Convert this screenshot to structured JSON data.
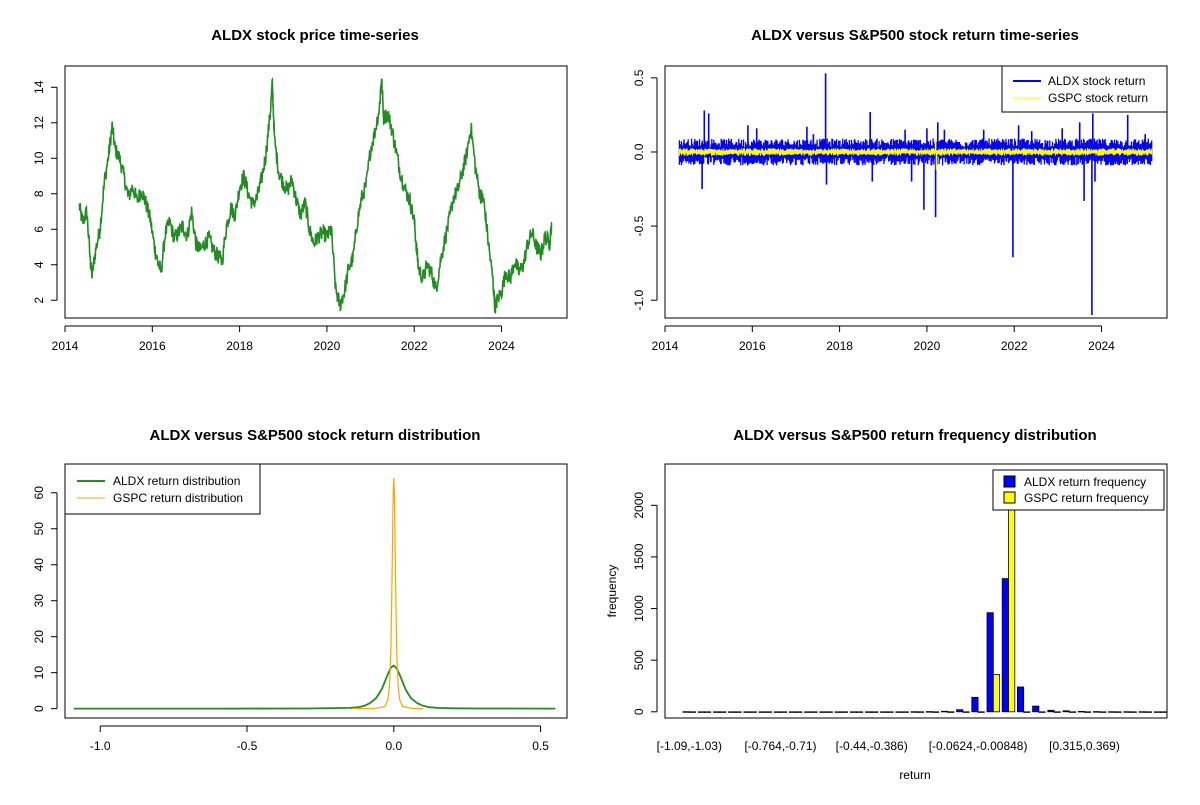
{
  "chart_data": [
    {
      "type": "line",
      "title": "ALDX stock price time-series",
      "xlabel": "",
      "ylabel": "",
      "xlim": [
        2014.0,
        2025.5
      ],
      "ylim": [
        1.0,
        15.2
      ],
      "xticks": [
        2014,
        2016,
        2018,
        2020,
        2022,
        2024
      ],
      "xtick_labels": [
        "2014",
        "2016",
        "2018",
        "2020",
        "2022",
        "2024"
      ],
      "yticks": [
        2,
        4,
        6,
        8,
        10,
        12,
        14
      ],
      "ytick_labels": [
        "2",
        "4",
        "6",
        "8",
        "10",
        "12",
        "14"
      ],
      "series": [
        {
          "name": "ALDX price",
          "color": "#228B22",
          "x": [
            2014.33,
            2014.4,
            2014.5,
            2014.58,
            2014.62,
            2014.7,
            2014.8,
            2014.9,
            2015.0,
            2015.08,
            2015.15,
            2015.25,
            2015.35,
            2015.45,
            2015.55,
            2015.65,
            2015.75,
            2015.85,
            2015.95,
            2016.05,
            2016.12,
            2016.2,
            2016.3,
            2016.4,
            2016.5,
            2016.6,
            2016.7,
            2016.8,
            2016.9,
            2017.0,
            2017.1,
            2017.2,
            2017.3,
            2017.4,
            2017.5,
            2017.6,
            2017.7,
            2017.8,
            2017.9,
            2018.0,
            2018.1,
            2018.2,
            2018.3,
            2018.4,
            2018.5,
            2018.6,
            2018.7,
            2018.75,
            2018.8,
            2018.9,
            2019.0,
            2019.1,
            2019.2,
            2019.3,
            2019.4,
            2019.5,
            2019.6,
            2019.7,
            2019.8,
            2019.9,
            2020.0,
            2020.1,
            2020.2,
            2020.3,
            2020.4,
            2020.5,
            2020.6,
            2020.7,
            2020.8,
            2020.9,
            2021.0,
            2021.1,
            2021.2,
            2021.25,
            2021.3,
            2021.4,
            2021.5,
            2021.6,
            2021.7,
            2021.8,
            2021.9,
            2022.0,
            2022.05,
            2022.1,
            2022.2,
            2022.3,
            2022.4,
            2022.5,
            2022.6,
            2022.7,
            2022.8,
            2022.9,
            2023.0,
            2023.1,
            2023.2,
            2023.3,
            2023.4,
            2023.5,
            2023.55,
            2023.6,
            2023.7,
            2023.8,
            2023.85,
            2023.9,
            2024.0,
            2024.1,
            2024.2,
            2024.3,
            2024.4,
            2024.5,
            2024.6,
            2024.7,
            2024.8,
            2024.9,
            2025.0,
            2025.1,
            2025.15
          ],
          "y": [
            7.3,
            6.4,
            7.0,
            4.2,
            3.4,
            4.8,
            6.0,
            8.6,
            10.2,
            11.8,
            10.5,
            10.0,
            9.0,
            7.8,
            8.4,
            7.6,
            8.2,
            7.5,
            6.6,
            5.0,
            4.2,
            3.6,
            5.8,
            6.4,
            5.5,
            5.8,
            6.2,
            5.6,
            7.0,
            5.2,
            4.8,
            5.2,
            5.5,
            4.8,
            4.5,
            4.2,
            6.2,
            7.2,
            6.8,
            8.4,
            9.0,
            8.0,
            7.4,
            7.8,
            8.8,
            10.2,
            12.5,
            14.2,
            11.0,
            9.2,
            8.6,
            8.2,
            8.8,
            7.6,
            6.8,
            7.5,
            6.0,
            5.2,
            5.6,
            5.8,
            5.6,
            6.0,
            2.6,
            1.7,
            2.5,
            3.8,
            4.4,
            6.5,
            7.8,
            8.5,
            10.5,
            11.5,
            12.8,
            14.6,
            12.3,
            12.5,
            11.5,
            10.2,
            9.0,
            8.2,
            7.6,
            6.5,
            5.0,
            3.8,
            3.2,
            4.0,
            3.5,
            2.6,
            4.2,
            5.4,
            6.5,
            7.8,
            8.2,
            9.2,
            10.2,
            11.8,
            9.5,
            8.0,
            7.8,
            7.5,
            5.2,
            3.2,
            1.6,
            2.0,
            2.5,
            3.6,
            3.2,
            4.2,
            3.6,
            4.0,
            5.2,
            5.8,
            5.0,
            4.6,
            5.6,
            5.2,
            6.4
          ]
        }
      ]
    },
    {
      "type": "line",
      "title": "ALDX versus S&P500 stock return time-series",
      "xlabel": "",
      "ylabel": "",
      "xlim": [
        2014.0,
        2025.5
      ],
      "ylim": [
        -1.12,
        0.58
      ],
      "xticks": [
        2014,
        2016,
        2018,
        2020,
        2022,
        2024
      ],
      "xtick_labels": [
        "2014",
        "2016",
        "2018",
        "2020",
        "2022",
        "2024"
      ],
      "yticks": [
        -1.0,
        -0.5,
        0.0,
        0.5
      ],
      "ytick_labels": [
        "-1.0",
        "-0.5",
        "0.0",
        "0.5"
      ],
      "legend": "top-right",
      "series": [
        {
          "name": "ALDX stock return",
          "color": "#0000FF",
          "band": [
            -0.07,
            0.07
          ],
          "spikes": [
            [
              2014.9,
              0.28
            ],
            [
              2014.85,
              -0.25
            ],
            [
              2015.0,
              0.26
            ],
            [
              2015.9,
              0.18
            ],
            [
              2016.1,
              0.16
            ],
            [
              2017.25,
              0.17
            ],
            [
              2017.4,
              0.12
            ],
            [
              2017.68,
              0.53
            ],
            [
              2017.7,
              -0.22
            ],
            [
              2018.7,
              0.27
            ],
            [
              2018.75,
              -0.2
            ],
            [
              2019.5,
              0.15
            ],
            [
              2019.65,
              -0.2
            ],
            [
              2019.93,
              -0.39
            ],
            [
              2020.0,
              0.16
            ],
            [
              2020.2,
              -0.44
            ],
            [
              2020.25,
              0.2
            ],
            [
              2020.4,
              0.15
            ],
            [
              2021.3,
              0.15
            ],
            [
              2021.97,
              -0.71
            ],
            [
              2022.1,
              0.18
            ],
            [
              2022.4,
              0.14
            ],
            [
              2023.1,
              0.16
            ],
            [
              2023.5,
              0.2
            ],
            [
              2023.6,
              -0.33
            ],
            [
              2023.78,
              -1.1
            ],
            [
              2023.8,
              0.26
            ],
            [
              2023.85,
              -0.2
            ],
            [
              2024.6,
              0.25
            ],
            [
              2025.0,
              0.12
            ]
          ]
        },
        {
          "name": "GSPC stock return",
          "color": "#FFFF00",
          "band": [
            -0.02,
            0.02
          ],
          "spikes": [
            [
              2020.2,
              0.09
            ],
            [
              2020.22,
              -0.12
            ]
          ]
        }
      ]
    },
    {
      "type": "line",
      "title": "ALDX versus S&P500 stock return distribution",
      "xlabel": "",
      "ylabel": "",
      "xlim": [
        -1.12,
        0.59
      ],
      "ylim": [
        -2.6,
        68
      ],
      "xticks": [
        -1.0,
        -0.5,
        0.0,
        0.5
      ],
      "xtick_labels": [
        "-1.0",
        "-0.5",
        "0.0",
        "0.5"
      ],
      "yticks": [
        0,
        10,
        20,
        30,
        40,
        50,
        60
      ],
      "ytick_labels": [
        "0",
        "10",
        "20",
        "30",
        "40",
        "50",
        "60"
      ],
      "legend": "top-left",
      "series": [
        {
          "name": "ALDX return distribution",
          "color": "#228B22",
          "x": [
            -1.09,
            -0.6,
            -0.3,
            -0.15,
            -0.12,
            -0.1,
            -0.08,
            -0.06,
            -0.05,
            -0.04,
            -0.03,
            -0.02,
            -0.01,
            0.0,
            0.01,
            0.02,
            0.03,
            0.04,
            0.05,
            0.06,
            0.08,
            0.1,
            0.12,
            0.15,
            0.2,
            0.3,
            0.55
          ],
          "y": [
            0.02,
            0.02,
            0.05,
            0.2,
            0.4,
            0.8,
            1.6,
            3.0,
            4.2,
            5.6,
            7.6,
            9.6,
            11.4,
            12.0,
            11.2,
            9.4,
            7.4,
            5.4,
            4.0,
            2.8,
            1.5,
            0.8,
            0.4,
            0.2,
            0.1,
            0.03,
            0.02
          ]
        },
        {
          "name": "GSPC return distribution",
          "color": "#FFA500",
          "x": [
            -0.14,
            -0.06,
            -0.03,
            -0.02,
            -0.015,
            -0.01,
            -0.007,
            -0.004,
            -0.002,
            0.0,
            0.002,
            0.004,
            0.007,
            0.01,
            0.015,
            0.02,
            0.03,
            0.06,
            0.1
          ],
          "y": [
            0.0,
            0.1,
            0.6,
            2.5,
            6.0,
            16.0,
            30.0,
            48.0,
            60.0,
            64.0,
            60.0,
            48.0,
            30.0,
            16.0,
            6.0,
            2.5,
            0.6,
            0.1,
            0.0
          ]
        }
      ]
    },
    {
      "type": "bar",
      "title": "ALDX versus S&P500 return frequency distribution",
      "xlabel": "return",
      "ylabel": "frequency",
      "ylim": [
        -60,
        2400
      ],
      "yticks": [
        0,
        500,
        1000,
        1500,
        2000
      ],
      "ytick_labels": [
        "0",
        "500",
        "1000",
        "1500",
        "2000"
      ],
      "xtick_labels": [
        "[-1.09,-1.03)",
        "[-0.764,-0.71)",
        "[-0.44,-0.386)",
        "[-0.0624,-0.00848)",
        "[0.315,0.369)"
      ],
      "xtick_groups": [
        0,
        6,
        12,
        19,
        26
      ],
      "legend": "top-right",
      "series": [
        {
          "name": "ALDX return frequency",
          "color": "#0000FF",
          "values": [
            1,
            0,
            0,
            0,
            0,
            0,
            0,
            0,
            0,
            0,
            0,
            0,
            0,
            0,
            0,
            1,
            2,
            5,
            20,
            140,
            960,
            1290,
            240,
            55,
            15,
            10,
            4,
            2,
            1,
            1,
            1,
            0
          ]
        },
        {
          "name": "GSPC return frequency",
          "color": "#FFFF00",
          "values": [
            0,
            0,
            0,
            0,
            0,
            0,
            0,
            0,
            0,
            0,
            0,
            0,
            0,
            0,
            0,
            0,
            0,
            0,
            0,
            0,
            360,
            2300,
            0,
            0,
            0,
            0,
            0,
            0,
            0,
            0,
            0,
            0
          ]
        }
      ]
    }
  ]
}
